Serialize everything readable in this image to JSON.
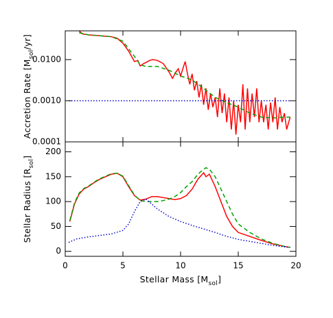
{
  "chart_data": [
    {
      "type": "line",
      "ylabel": [
        "Accretion Rate [M",
        "sol",
        "/yr]"
      ],
      "ylog": true,
      "xlim": [
        0,
        20
      ],
      "xticks": [
        0,
        5,
        10,
        15,
        20
      ],
      "ylim": [
        0.0001,
        0.05
      ],
      "yticks": [
        0.0001,
        {
          "value": 0.001,
          "label": "0.0010"
        },
        {
          "value": 0.01,
          "label": "0.0100"
        }
      ],
      "series": [
        {
          "color": "#ff0000",
          "dash": "solid",
          "x": [
            1.2,
            1.5,
            2,
            2.5,
            3,
            3.5,
            4,
            4.5,
            5,
            5.5,
            6,
            6.3,
            6.5,
            6.8,
            7,
            7.3,
            7.6,
            8,
            8.5,
            9,
            9.3,
            9.6,
            9.8,
            10,
            10.2,
            10.4,
            10.6,
            10.8,
            11,
            11.2,
            11.4,
            11.6,
            11.8,
            12,
            12.2,
            12.4,
            12.6,
            12.8,
            13,
            13.2,
            13.4,
            13.6,
            13.8,
            14,
            14.2,
            14.4,
            14.6,
            14.8,
            15,
            15.2,
            15.4,
            15.6,
            15.8,
            16,
            16.2,
            16.4,
            16.6,
            16.8,
            17,
            17.2,
            17.4,
            17.6,
            17.8,
            18,
            18.2,
            18.4,
            18.6,
            18.8,
            19,
            19.2,
            19.5
          ],
          "values": [
            0.05,
            0.042,
            0.04,
            0.039,
            0.038,
            0.037,
            0.036,
            0.033,
            0.025,
            0.016,
            0.009,
            0.0095,
            0.007,
            0.008,
            0.0085,
            0.0095,
            0.01,
            0.0095,
            0.008,
            0.005,
            0.0035,
            0.005,
            0.006,
            0.004,
            0.006,
            0.009,
            0.0045,
            0.0025,
            0.0045,
            0.0018,
            0.003,
            0.0012,
            0.0025,
            0.0008,
            0.002,
            0.0006,
            0.0015,
            0.0007,
            0.0012,
            0.0004,
            0.002,
            0.0005,
            0.0015,
            0.0003,
            0.0012,
            0.0002,
            0.001,
            0.00015,
            0.0008,
            0.0003,
            0.0025,
            0.0002,
            0.002,
            0.0003,
            0.0015,
            0.0004,
            0.002,
            0.0003,
            0.001,
            0.0003,
            0.0008,
            0.0002,
            0.0009,
            0.0003,
            0.0012,
            0.0002,
            0.0007,
            0.0003,
            0.0005,
            0.0002,
            0.0004
          ]
        },
        {
          "color": "#00a000",
          "dash": "dashed",
          "x": [
            1.2,
            2,
            3,
            4,
            5,
            6,
            6.5,
            7,
            8,
            9,
            10,
            11,
            12,
            13,
            14,
            15,
            16,
            17,
            18,
            19,
            19.5
          ],
          "values": [
            0.045,
            0.04,
            0.038,
            0.036,
            0.028,
            0.012,
            0.0075,
            0.0068,
            0.0068,
            0.0055,
            0.004,
            0.0032,
            0.002,
            0.0012,
            0.0009,
            0.0007,
            0.0005,
            0.0004,
            0.00038,
            0.0004,
            0.0004
          ]
        },
        {
          "color": "#0000cc",
          "dash": "dotted",
          "x": [
            0.3,
            19.5
          ],
          "values": [
            0.001,
            0.001
          ]
        }
      ]
    },
    {
      "type": "line",
      "ylabel": [
        "Stellar Radius [R",
        "sol",
        "]"
      ],
      "xlabel": [
        "Stellar Mass [M",
        "sol",
        "]"
      ],
      "xlim": [
        0,
        20
      ],
      "xticks": [
        0,
        5,
        10,
        15,
        20
      ],
      "ylim": [
        -10,
        220
      ],
      "yticks": [
        0,
        50,
        100,
        150,
        200
      ],
      "series": [
        {
          "color": "#ff0000",
          "dash": "solid",
          "x": [
            0.4,
            0.8,
            1.2,
            1.6,
            2,
            2.5,
            3,
            3.5,
            4,
            4.5,
            5,
            5.5,
            6,
            6.5,
            7,
            7.5,
            8,
            8.5,
            9,
            9.5,
            10,
            10.5,
            11,
            11.5,
            12,
            12.2,
            12.5,
            13,
            13.5,
            14,
            14.5,
            15,
            16,
            17,
            18,
            19,
            19.5
          ],
          "values": [
            60,
            95,
            115,
            125,
            130,
            138,
            145,
            150,
            155,
            157,
            150,
            130,
            112,
            103,
            105,
            110,
            110,
            108,
            106,
            104,
            106,
            112,
            125,
            145,
            158,
            150,
            155,
            130,
            100,
            70,
            50,
            38,
            30,
            22,
            15,
            10,
            8
          ]
        },
        {
          "color": "#00a000",
          "dash": "dashed",
          "x": [
            0.4,
            0.8,
            1.2,
            1.6,
            2,
            2.5,
            3,
            3.5,
            4,
            4.5,
            5,
            5.5,
            6,
            6.5,
            7,
            7.5,
            8,
            8.5,
            9,
            9.5,
            10,
            10.5,
            11,
            11.5,
            12,
            12.2,
            12.5,
            13,
            13.5,
            14,
            14.5,
            15,
            16,
            17,
            18,
            19,
            19.5
          ],
          "values": [
            62,
            97,
            117,
            126,
            131,
            139,
            146,
            151,
            156,
            157,
            151,
            132,
            113,
            102,
            100,
            100,
            100,
            102,
            105,
            110,
            118,
            130,
            140,
            155,
            165,
            168,
            165,
            150,
            125,
            100,
            75,
            55,
            38,
            25,
            16,
            10,
            8
          ]
        },
        {
          "color": "#0000cc",
          "dash": "dotted",
          "x": [
            0.3,
            1,
            2,
            3,
            4,
            5,
            5.5,
            6,
            6.5,
            7,
            8,
            9,
            10,
            11,
            12,
            13,
            14,
            15,
            16,
            17,
            18,
            19,
            19.5
          ],
          "values": [
            18,
            25,
            29,
            32,
            35,
            42,
            55,
            80,
            100,
            105,
            85,
            70,
            60,
            52,
            45,
            38,
            30,
            24,
            20,
            16,
            12,
            9,
            8
          ]
        }
      ]
    }
  ]
}
